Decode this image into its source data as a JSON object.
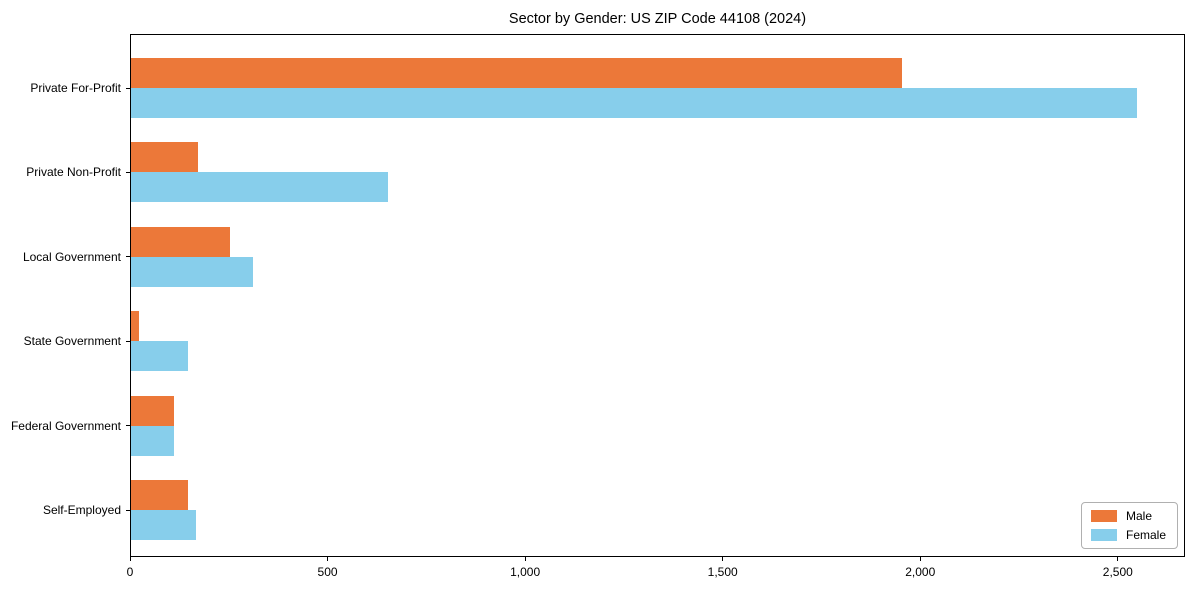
{
  "title": "Sector by Gender: US ZIP Code 44108 (2024)",
  "chart_data": {
    "type": "bar",
    "orientation": "horizontal",
    "title": "Sector by Gender: US ZIP Code 44108 (2024)",
    "xlabel": "",
    "ylabel": "",
    "categories": [
      "Private For-Profit",
      "Private Non-Profit",
      "Local Government",
      "State Government",
      "Federal Government",
      "Self-Employed"
    ],
    "series": [
      {
        "name": "Male",
        "color": "#EC7839",
        "values": [
          1950,
          170,
          250,
          20,
          110,
          145
        ]
      },
      {
        "name": "Female",
        "color": "#87CEEB",
        "values": [
          2545,
          650,
          310,
          145,
          108,
          165
        ]
      }
    ],
    "xlim": [
      0,
      2670
    ],
    "xticks": [
      0,
      500,
      1000,
      1500,
      2000,
      2500
    ],
    "xtick_labels": [
      "0",
      "500",
      "1,000",
      "1,500",
      "2,000",
      "2,500"
    ],
    "grid": false,
    "legend_position": "lower right"
  }
}
